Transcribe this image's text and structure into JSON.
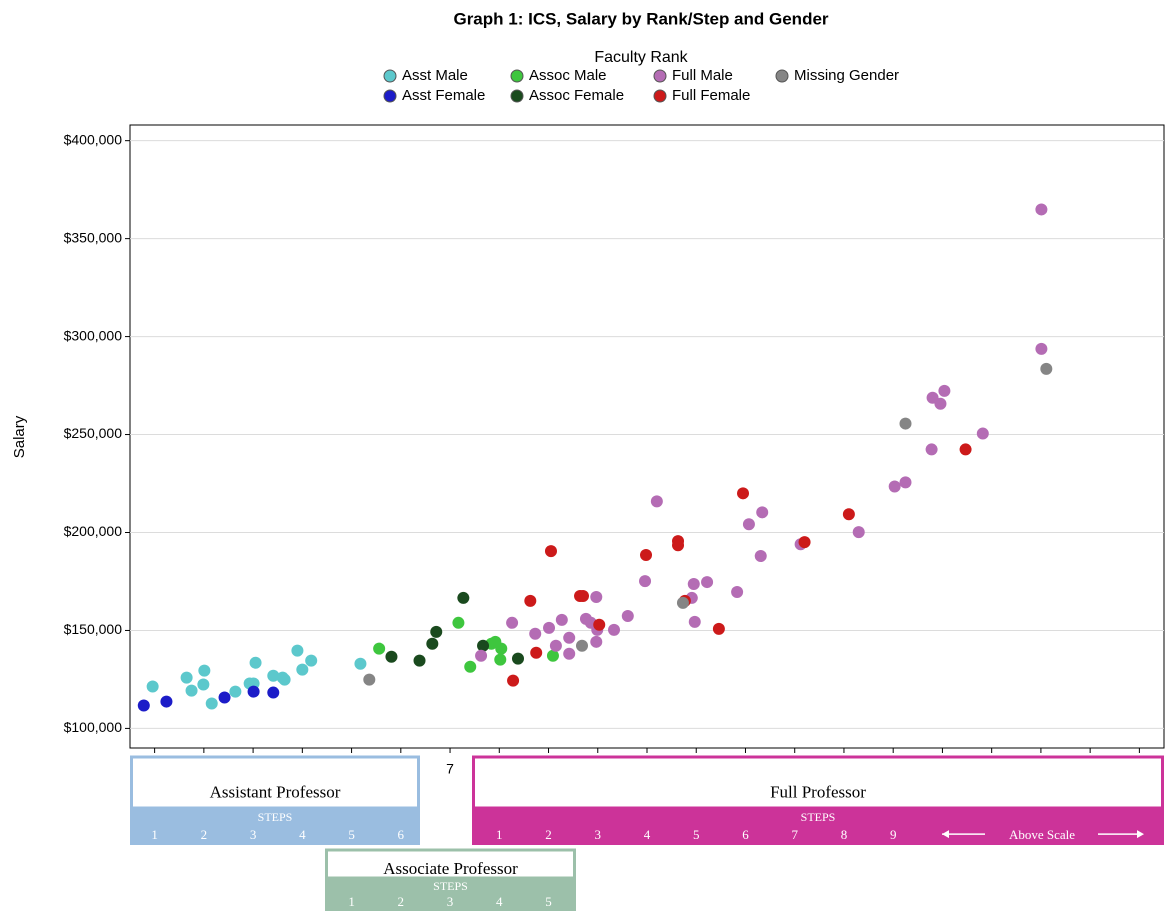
{
  "chart_data": {
    "type": "scatter",
    "title": "Graph 1: ICS, Salary by Rank/Step and Gender",
    "legend_title": "Faculty Rank",
    "y_label": "Salary",
    "xlim": [
      0.5,
      21.5
    ],
    "xticks": [
      1,
      2,
      3,
      4,
      5,
      6,
      7,
      8,
      9,
      10,
      11,
      12,
      13,
      14,
      15,
      16,
      17,
      18,
      19,
      20,
      21
    ],
    "ylim": [
      90000,
      408000
    ],
    "yticks": [
      {
        "value": 100000,
        "label": "$100,000"
      },
      {
        "value": 150000,
        "label": "$150,000"
      },
      {
        "value": 200000,
        "label": "$200,000"
      },
      {
        "value": 250000,
        "label": "$250,000"
      },
      {
        "value": 300000,
        "label": "$300,000"
      },
      {
        "value": 350000,
        "label": "$350,000"
      },
      {
        "value": 400000,
        "label": "$400,000"
      }
    ],
    "grid": true,
    "series": [
      {
        "name": "Asst Male",
        "color": "#5cc8cc",
        "x": [
          0.96,
          1.65,
          1.75,
          2.01,
          1.99,
          2.16,
          2.64,
          2.93,
          3.05,
          3.01,
          3.41,
          3.64,
          3.6,
          3.9,
          4.0,
          4.18,
          5.18
        ],
        "values": [
          121400,
          125900,
          119300,
          129500,
          122400,
          112700,
          118800,
          122900,
          133500,
          122900,
          126900,
          124900,
          125900,
          139700,
          130000,
          134600,
          133000
        ]
      },
      {
        "name": "Asst Female",
        "color": "#1c1cc8",
        "x": [
          0.78,
          1.24,
          2.42,
          3.01,
          3.41
        ],
        "values": [
          111700,
          113700,
          115800,
          118800,
          118300
        ]
      },
      {
        "name": "Assoc Male",
        "color": "#3ec63e",
        "x": [
          5.56,
          7.17,
          7.41,
          7.84,
          7.92,
          8.04,
          8.02,
          9.09
        ],
        "values": [
          140700,
          153900,
          131500,
          143200,
          144200,
          140700,
          135100,
          137100
        ]
      },
      {
        "name": "Assoc Female",
        "color": "#1a4a1e",
        "x": [
          5.81,
          6.38,
          6.64,
          6.72,
          7.27,
          7.67,
          8.38
        ],
        "values": [
          136600,
          134600,
          143200,
          149300,
          166600,
          142200,
          135600
        ]
      },
      {
        "name": "Full Male",
        "color": "#b46cb4",
        "x": [
          7.63,
          8.26,
          8.73,
          9.01,
          9.15,
          9.27,
          9.42,
          9.42,
          9.76,
          9.86,
          9.97,
          9.97,
          9.99,
          10.33,
          10.61,
          10.96,
          11.2,
          11.91,
          11.95,
          11.97,
          12.22,
          12.83,
          13.07,
          13.31,
          13.34,
          14.12,
          15.3,
          16.03,
          16.25,
          16.78,
          16.8,
          16.96,
          17.04,
          17.82,
          19.01,
          19.01
        ],
        "values": [
          137100,
          153900,
          148300,
          151300,
          142200,
          155400,
          146300,
          138100,
          155900,
          153900,
          167100,
          144200,
          150300,
          150300,
          157400,
          175200,
          215900,
          166600,
          173700,
          154400,
          174700,
          169600,
          204200,
          188000,
          210300,
          194000,
          200200,
          223500,
          225600,
          242400,
          268800,
          265700,
          272300,
          250500,
          364900,
          293700
        ]
      },
      {
        "name": "Full Female",
        "color": "#cc1a1a",
        "x": [
          8.28,
          8.63,
          8.75,
          9.05,
          9.64,
          9.7,
          10.03,
          10.98,
          11.63,
          11.63,
          11.77,
          12.46,
          12.95,
          14.2,
          15.1,
          17.47
        ],
        "values": [
          124400,
          165100,
          138600,
          190500,
          167600,
          167600,
          152900,
          188500,
          193500,
          195600,
          165100,
          150800,
          220000,
          195100,
          209300,
          242400
        ]
      },
      {
        "name": "Missing Gender",
        "color": "#858585",
        "x": [
          5.36,
          9.68,
          11.73,
          16.25,
          19.11
        ],
        "values": [
          124900,
          142200,
          164100,
          255600,
          283500
        ]
      }
    ],
    "rank_bands": [
      {
        "name": "Assistant Professor",
        "color": "#9abde0",
        "steps_title": "STEPS",
        "steps": [
          1,
          2,
          3,
          4,
          5,
          6
        ]
      },
      {
        "name": "Associate Professor",
        "color": "#9cc0aa",
        "steps_title": "STEPS",
        "steps": [
          1,
          2,
          3,
          4,
          5
        ]
      },
      {
        "name": "Full Professor",
        "color": "#cc3399",
        "steps_title": "STEPS",
        "steps": [
          1,
          2,
          3,
          4,
          5,
          6,
          7,
          8,
          9
        ],
        "above_scale": "Above Scale"
      }
    ]
  }
}
